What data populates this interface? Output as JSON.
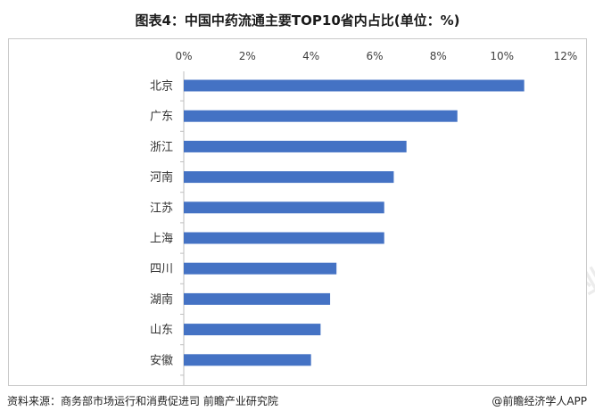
{
  "title": "图表4：中国中药流通主要TOP10省内占比(单位：%)",
  "footer": {
    "source": "资料来源：商务部市场运行和消费促进司 前瞻产业研究院",
    "credit": "@前瞻经济学人APP"
  },
  "watermark": "前瞻产业研究院",
  "chart_data": {
    "type": "bar",
    "orientation": "horizontal",
    "title": "图表4：中国中药流通主要TOP10省内占比(单位：%)",
    "categories": [
      "北京",
      "广东",
      "浙江",
      "河南",
      "江苏",
      "上海",
      "四川",
      "湖南",
      "山东",
      "安徽"
    ],
    "values": [
      10.7,
      8.6,
      7.0,
      6.6,
      6.3,
      6.3,
      4.8,
      4.6,
      4.3,
      4.0
    ],
    "xlim": [
      0,
      12
    ],
    "ticks": [
      "0%",
      "2%",
      "4%",
      "6%",
      "8%",
      "10%",
      "12%"
    ],
    "tick_values": [
      0,
      2,
      4,
      6,
      8,
      10,
      12
    ],
    "grid": false,
    "legend": "none",
    "bar_color": "#4472c4"
  }
}
